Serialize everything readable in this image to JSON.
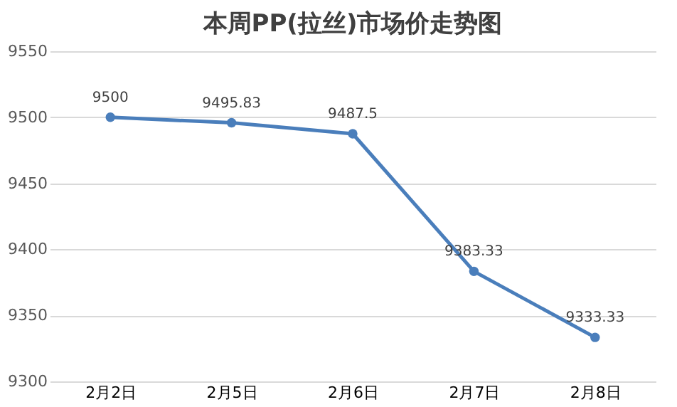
{
  "chart_data": {
    "type": "line",
    "title": "本周PP(拉丝)市场价走势图",
    "categories": [
      "2月2日",
      "2月5日",
      "2月6日",
      "2月7日",
      "2月8日"
    ],
    "series": [
      {
        "color": "#4a7ebb",
        "values": [
          9500,
          9495.83,
          9487.5,
          9383.33,
          9333.33
        ]
      }
    ],
    "ylim": [
      9300,
      9550
    ],
    "yticks": [
      9300,
      9350,
      9400,
      9450,
      9500,
      9550
    ],
    "grid": "y",
    "marker": "circle",
    "line_style": "solid",
    "data_labels": true,
    "legend": false
  }
}
